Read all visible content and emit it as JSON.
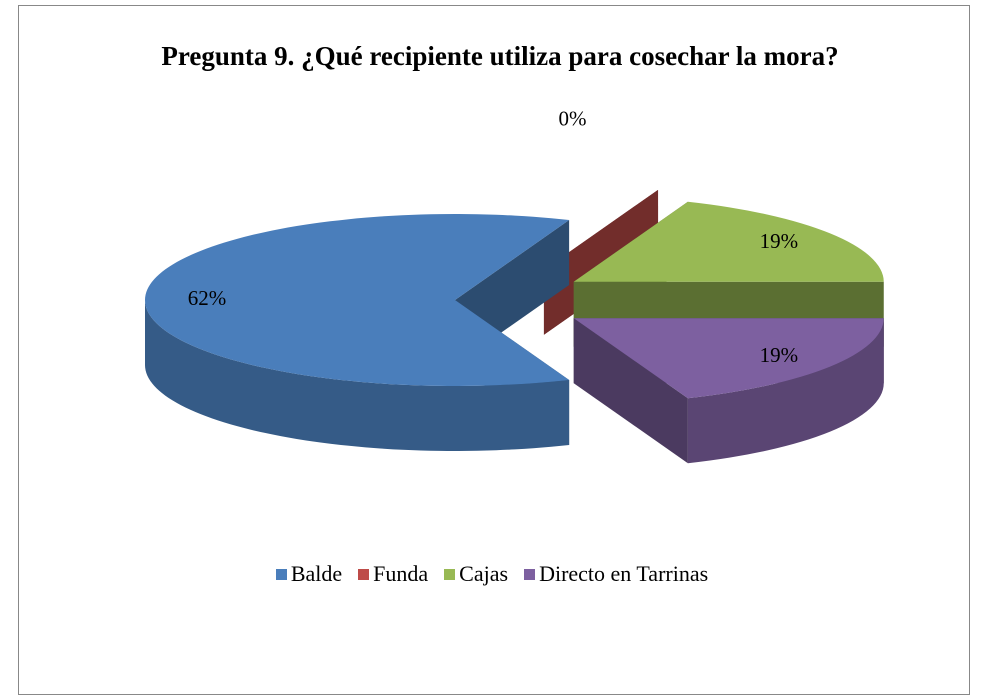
{
  "chart_data": {
    "type": "pie",
    "title": "Pregunta 9. ¿Qué recipiente utiliza para cosechar la mora?",
    "categories": [
      "Balde",
      "Funda",
      "Cajas",
      "Directo en Tarrinas"
    ],
    "values": [
      62,
      0,
      19,
      19
    ],
    "value_labels": [
      "62%",
      "0%",
      "19%",
      "19%"
    ],
    "colors": [
      "#4a7ebb",
      "#be4b48",
      "#98b954",
      "#7d60a0"
    ],
    "legend": "bottom"
  }
}
